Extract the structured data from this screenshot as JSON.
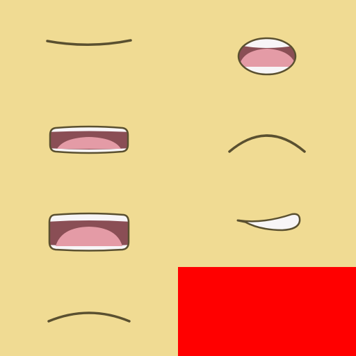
{
  "sprite_sheet": {
    "background": "#f0db93",
    "palette": {
      "outline": "#5a5030",
      "mouth_interior": "#8a4e55",
      "tongue": "#e49ba6",
      "teeth": "#f7f5f7"
    },
    "grid": {
      "columns": 2,
      "rows": 4
    },
    "sprites": [
      {
        "name": "mouth-closed-flat-icon"
      },
      {
        "name": "mouth-small-open-icon"
      },
      {
        "name": "mouth-medium-open-icon"
      },
      {
        "name": "mouth-frown-arc-icon"
      },
      {
        "name": "mouth-wide-open-icon"
      },
      {
        "name": "mouth-smirk-teeth-icon"
      },
      {
        "name": "mouth-slight-frown-icon"
      }
    ],
    "placeholder_block": {
      "color": "#ff0000"
    }
  }
}
